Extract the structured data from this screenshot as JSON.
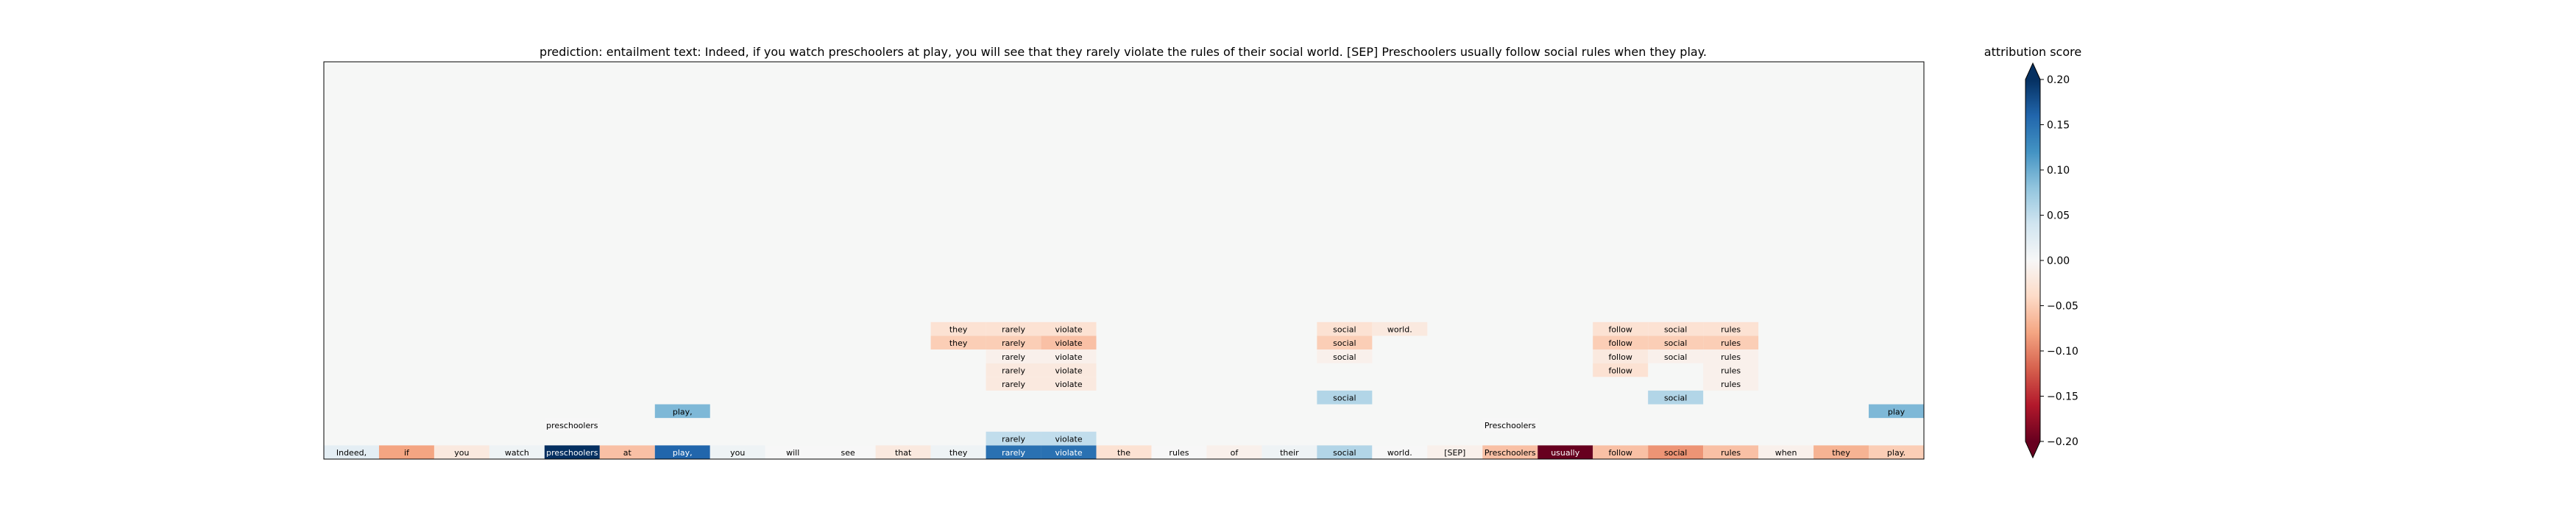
{
  "chart_data": {
    "type": "heatmap",
    "title": "prediction:  entailment     text:  Indeed, if you watch preschoolers at play, you will see that they rarely violate the rules of their social world. [SEP] Preschoolers usually follow social rules when they play.",
    "tokens": [
      "Indeed,",
      "if",
      "you",
      "watch",
      "preschoolers",
      "at",
      "play,",
      "you",
      "will",
      "see",
      "that",
      "they",
      "rarely",
      "violate",
      "the",
      "rules",
      "of",
      "their",
      "social",
      "world.",
      "[SEP]",
      "Preschoolers",
      "usually",
      "follow",
      "social",
      "rules",
      "when",
      "they",
      "play."
    ],
    "bottom_row_scores": [
      0.02,
      -0.08,
      -0.02,
      0.01,
      0.2,
      -0.06,
      0.16,
      0.01,
      0.0,
      0.0,
      -0.02,
      0.01,
      0.15,
      0.15,
      -0.03,
      0.0,
      -0.01,
      0.01,
      0.06,
      0.0,
      -0.01,
      -0.06,
      -0.2,
      -0.06,
      -0.09,
      -0.06,
      -0.01,
      -0.07,
      -0.05
    ],
    "explanation_rows": [
      {
        "row": 1,
        "cells": [
          {
            "i": 12,
            "text": "rarely",
            "score": 0.05
          },
          {
            "i": 13,
            "text": "violate",
            "score": 0.05
          }
        ]
      },
      {
        "row": 2,
        "cells": [
          {
            "i": 4,
            "text": "preschoolers",
            "score": 0.0
          },
          {
            "i": 21,
            "text": "Preschoolers",
            "score": 0.0
          }
        ]
      },
      {
        "row": 3,
        "cells": [
          {
            "i": 6,
            "text": "play,",
            "score": 0.09
          },
          {
            "i": 28,
            "text": "play",
            "score": 0.09
          }
        ]
      },
      {
        "row": 4,
        "cells": [
          {
            "i": 18,
            "text": "social",
            "score": 0.06
          },
          {
            "i": 24,
            "text": "social",
            "score": 0.06
          }
        ]
      },
      {
        "row": 5,
        "cells": [
          {
            "i": 12,
            "text": "rarely",
            "score": -0.02
          },
          {
            "i": 13,
            "text": "violate",
            "score": -0.02
          },
          {
            "i": 25,
            "text": "rules",
            "score": -0.01
          }
        ]
      },
      {
        "row": 6,
        "cells": [
          {
            "i": 12,
            "text": "rarely",
            "score": -0.02
          },
          {
            "i": 13,
            "text": "violate",
            "score": -0.02
          },
          {
            "i": 23,
            "text": "follow",
            "score": -0.03
          },
          {
            "i": 25,
            "text": "rules",
            "score": -0.01
          }
        ]
      },
      {
        "row": 7,
        "cells": [
          {
            "i": 12,
            "text": "rarely",
            "score": -0.01
          },
          {
            "i": 13,
            "text": "violate",
            "score": -0.01
          },
          {
            "i": 18,
            "text": "social",
            "score": -0.01
          },
          {
            "i": 23,
            "text": "follow",
            "score": -0.02
          },
          {
            "i": 24,
            "text": "social",
            "score": -0.01
          },
          {
            "i": 25,
            "text": "rules",
            "score": -0.01
          }
        ]
      },
      {
        "row": 8,
        "cells": [
          {
            "i": 11,
            "text": "they",
            "score": -0.05
          },
          {
            "i": 12,
            "text": "rarely",
            "score": -0.05
          },
          {
            "i": 13,
            "text": "violate",
            "score": -0.06
          },
          {
            "i": 18,
            "text": "social",
            "score": -0.05
          },
          {
            "i": 23,
            "text": "follow",
            "score": -0.05
          },
          {
            "i": 24,
            "text": "social",
            "score": -0.05
          },
          {
            "i": 25,
            "text": "rules",
            "score": -0.05
          }
        ]
      },
      {
        "row": 9,
        "cells": [
          {
            "i": 11,
            "text": "they",
            "score": -0.03
          },
          {
            "i": 12,
            "text": "rarely",
            "score": -0.03
          },
          {
            "i": 13,
            "text": "violate",
            "score": -0.03
          },
          {
            "i": 18,
            "text": "social",
            "score": -0.03
          },
          {
            "i": 19,
            "text": "world.",
            "score": -0.02
          },
          {
            "i": 23,
            "text": "follow",
            "score": -0.03
          },
          {
            "i": 24,
            "text": "social",
            "score": -0.03
          },
          {
            "i": 25,
            "text": "rules",
            "score": -0.03
          }
        ]
      }
    ],
    "colorbar": {
      "label": "attribution score",
      "range": [
        -0.2,
        0.2
      ],
      "ticks": [
        "0.20",
        "0.15",
        "0.10",
        "0.05",
        "0.00",
        "−0.05",
        "−0.10",
        "−0.15",
        "−0.20"
      ],
      "tick_values": [
        0.2,
        0.15,
        0.1,
        0.05,
        0.0,
        -0.05,
        -0.1,
        -0.15,
        -0.2
      ],
      "colormap": [
        "#67001f",
        "#b2182b",
        "#d6604d",
        "#f4a582",
        "#fddbc7",
        "#f7f7f7",
        "#d1e5f0",
        "#92c5de",
        "#4393c3",
        "#2166ac",
        "#053061"
      ]
    },
    "background_color": "#f6f7f6",
    "grid": false
  }
}
